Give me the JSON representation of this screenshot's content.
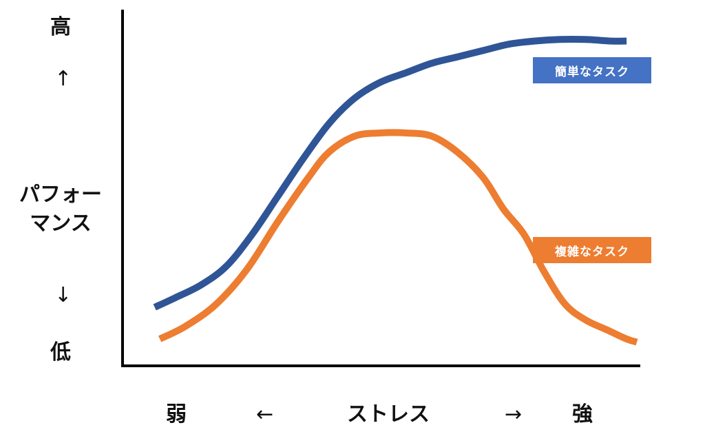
{
  "chart_data": {
    "type": "line",
    "ylabel": "パフォーマンス",
    "xlabel": "ストレス",
    "y_axis": {
      "top": "高",
      "bottom": "低",
      "up_arrow": "↑",
      "down_arrow": "↓"
    },
    "x_axis": {
      "left": "弱",
      "right": "強",
      "left_arrow": "←",
      "right_arrow": "→"
    },
    "grid": false,
    "series": [
      {
        "name": "簡単なタスク",
        "color": "#2F5597",
        "label_bg": "#4472C4",
        "x": [
          0.06,
          0.1,
          0.15,
          0.2,
          0.25,
          0.3,
          0.35,
          0.4,
          0.45,
          0.5,
          0.55,
          0.6,
          0.65,
          0.7,
          0.75,
          0.8,
          0.85,
          0.9,
          0.95,
          0.98
        ],
        "y": [
          0.15,
          0.18,
          0.22,
          0.28,
          0.38,
          0.5,
          0.62,
          0.73,
          0.81,
          0.86,
          0.89,
          0.92,
          0.94,
          0.96,
          0.98,
          0.99,
          0.995,
          0.995,
          0.99,
          0.99
        ]
      },
      {
        "name": "複雑なタスク",
        "color": "#ED7D31",
        "label_bg": "#ED7D31",
        "x": [
          0.07,
          0.12,
          0.18,
          0.24,
          0.3,
          0.36,
          0.4,
          0.45,
          0.5,
          0.55,
          0.6,
          0.65,
          0.7,
          0.74,
          0.78,
          0.82,
          0.86,
          0.9,
          0.94,
          0.98,
          1.0
        ],
        "y": [
          0.05,
          0.09,
          0.16,
          0.27,
          0.42,
          0.56,
          0.64,
          0.69,
          0.7,
          0.7,
          0.69,
          0.64,
          0.56,
          0.46,
          0.38,
          0.26,
          0.16,
          0.11,
          0.08,
          0.05,
          0.04
        ]
      }
    ]
  }
}
